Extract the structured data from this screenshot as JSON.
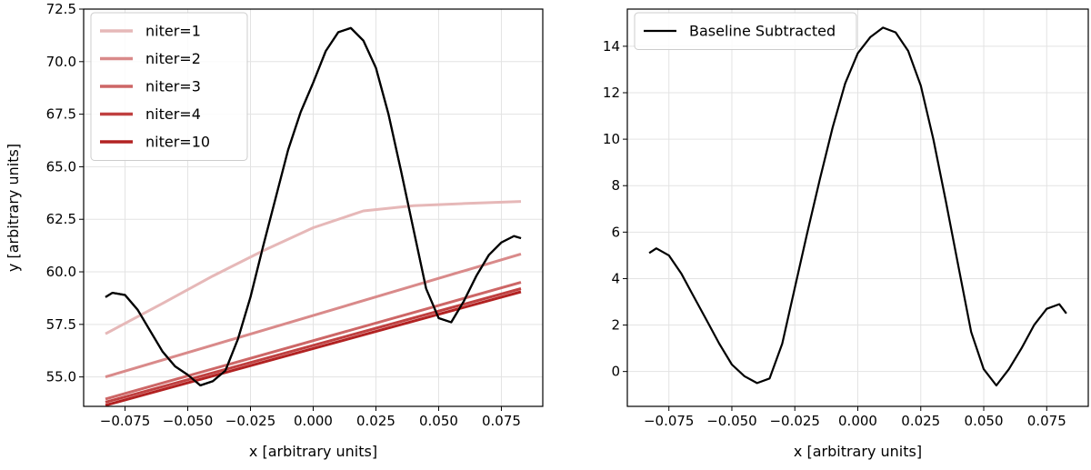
{
  "chart_data": [
    {
      "type": "line",
      "title": "",
      "xlabel": "x [arbitrary units]",
      "ylabel": "y [arbitrary units]",
      "xlim": [
        -0.0915,
        0.0915
      ],
      "ylim": [
        53.6,
        72.5
      ],
      "xticks": [
        -0.075,
        -0.05,
        -0.025,
        0.0,
        0.025,
        0.05,
        0.075
      ],
      "xtick_labels": [
        "−0.075",
        "−0.050",
        "−0.025",
        "0.000",
        "0.025",
        "0.050",
        "0.075"
      ],
      "yticks": [
        55.0,
        57.5,
        60.0,
        62.5,
        65.0,
        67.5,
        70.0,
        72.5
      ],
      "ytick_labels": [
        "55.0",
        "57.5",
        "60.0",
        "62.5",
        "65.0",
        "67.5",
        "70.0",
        "72.5"
      ],
      "grid": true,
      "legend_position": "top-left",
      "series": [
        {
          "color": "#000000",
          "x": [
            -0.0828,
            -0.08,
            -0.075,
            -0.07,
            -0.065,
            -0.06,
            -0.055,
            -0.05,
            -0.045,
            -0.04,
            -0.035,
            -0.03,
            -0.025,
            -0.02,
            -0.015,
            -0.01,
            -0.005,
            0.0,
            0.005,
            0.01,
            0.015,
            0.02,
            0.025,
            0.03,
            0.035,
            0.04,
            0.045,
            0.05,
            0.055,
            0.06,
            0.065,
            0.07,
            0.075,
            0.08,
            0.0828
          ],
          "y": [
            58.8,
            59.0,
            58.9,
            58.2,
            57.2,
            56.2,
            55.5,
            55.1,
            54.6,
            54.8,
            55.3,
            56.8,
            58.8,
            61.2,
            63.5,
            65.8,
            67.6,
            69.0,
            70.5,
            71.4,
            71.6,
            71.0,
            69.7,
            67.5,
            64.8,
            62.0,
            59.2,
            57.8,
            57.6,
            58.6,
            59.8,
            60.8,
            61.4,
            61.7,
            61.6
          ]
        },
        {
          "name": "niter=1",
          "color": "#e6b8b8",
          "x": [
            -0.0828,
            -0.06,
            -0.04,
            -0.02,
            0.0,
            0.02,
            0.04,
            0.06,
            0.0828
          ],
          "y": [
            57.05,
            58.5,
            59.8,
            61.0,
            62.1,
            62.9,
            63.15,
            63.25,
            63.35
          ]
        },
        {
          "name": "niter=2",
          "color": "#d98a8a",
          "x": [
            -0.0828,
            0.0828
          ],
          "y": [
            55.0,
            60.85
          ]
        },
        {
          "name": "niter=3",
          "color": "#cd6666",
          "x": [
            -0.0828,
            0.0828
          ],
          "y": [
            53.95,
            59.5
          ]
        },
        {
          "name": "niter=4",
          "color": "#c04040",
          "x": [
            -0.0828,
            0.0828
          ],
          "y": [
            53.8,
            59.2
          ]
        },
        {
          "name": "niter=10",
          "color": "#b22222",
          "x": [
            -0.0828,
            0.0828
          ],
          "y": [
            53.65,
            59.05
          ]
        }
      ]
    },
    {
      "type": "line",
      "title": "",
      "xlabel": "x [arbitrary units]",
      "ylabel": "",
      "xlim": [
        -0.0915,
        0.0915
      ],
      "ylim": [
        -1.5,
        15.6
      ],
      "xticks": [
        -0.075,
        -0.05,
        -0.025,
        0.0,
        0.025,
        0.05,
        0.075
      ],
      "xtick_labels": [
        "−0.075",
        "−0.050",
        "−0.025",
        "0.000",
        "0.025",
        "0.050",
        "0.075"
      ],
      "yticks": [
        0,
        2,
        4,
        6,
        8,
        10,
        12,
        14
      ],
      "ytick_labels": [
        "0",
        "2",
        "4",
        "6",
        "8",
        "10",
        "12",
        "14"
      ],
      "grid": true,
      "legend_position": "top-left",
      "series": [
        {
          "name": "Baseline Subtracted",
          "color": "#000000",
          "x": [
            -0.0828,
            -0.08,
            -0.075,
            -0.07,
            -0.065,
            -0.06,
            -0.055,
            -0.05,
            -0.045,
            -0.04,
            -0.035,
            -0.03,
            -0.025,
            -0.02,
            -0.015,
            -0.01,
            -0.005,
            0.0,
            0.005,
            0.01,
            0.015,
            0.02,
            0.025,
            0.03,
            0.035,
            0.04,
            0.045,
            0.05,
            0.055,
            0.06,
            0.065,
            0.07,
            0.075,
            0.08,
            0.0828
          ],
          "y": [
            5.1,
            5.3,
            5.0,
            4.2,
            3.2,
            2.2,
            1.2,
            0.3,
            -0.2,
            -0.5,
            -0.3,
            1.2,
            3.6,
            6.0,
            8.3,
            10.5,
            12.4,
            13.7,
            14.4,
            14.8,
            14.6,
            13.8,
            12.3,
            10.0,
            7.3,
            4.5,
            1.7,
            0.1,
            -0.6,
            0.1,
            1.0,
            2.0,
            2.7,
            2.9,
            2.5
          ]
        }
      ]
    }
  ]
}
